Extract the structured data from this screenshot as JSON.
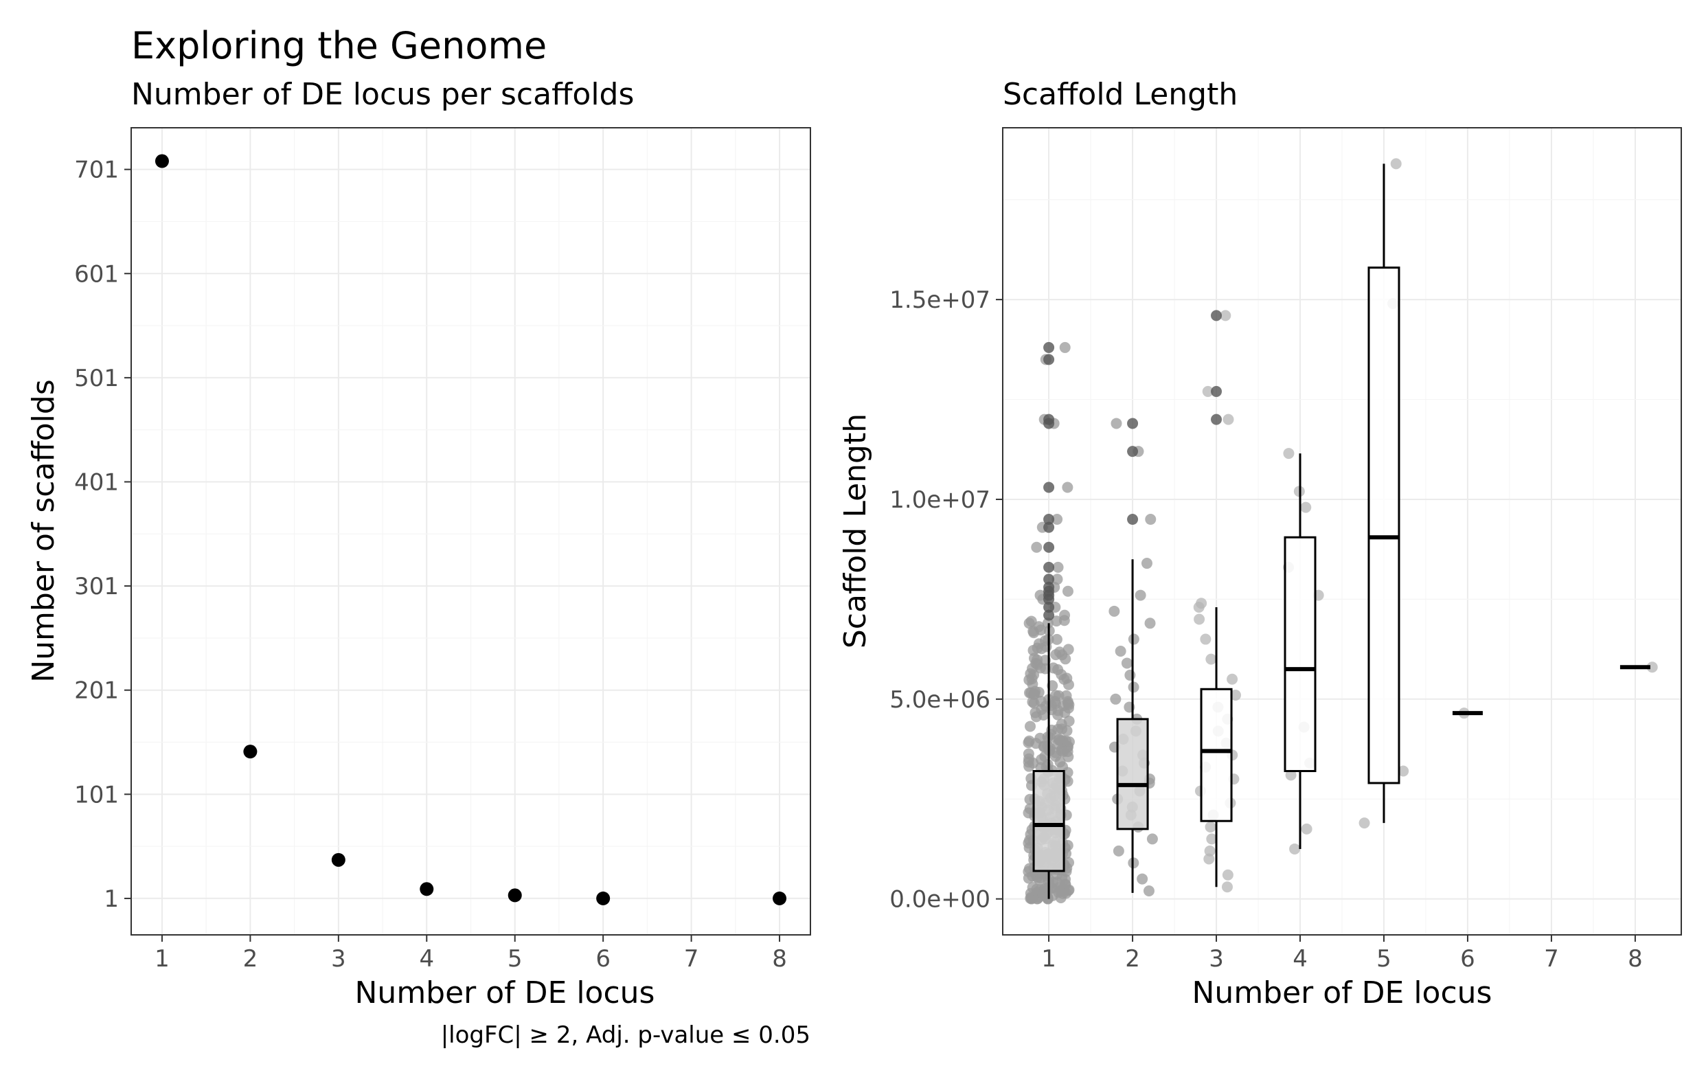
{
  "figure": {
    "title": "Exploring the Genome",
    "caption": "|logFC| ≥ 2,  Adj. p-value ≤ 0.05"
  },
  "chart_data": [
    {
      "type": "scatter",
      "title": "Number of DE locus per scaffolds",
      "xlabel": "Number of DE locus",
      "ylabel": "Number of scaffolds",
      "x_ticks": [
        1,
        2,
        3,
        4,
        5,
        6,
        7,
        8
      ],
      "y_ticks": [
        1,
        101,
        201,
        301,
        401,
        501,
        601,
        701
      ],
      "xlim": [
        0.65,
        8.35
      ],
      "ylim": [
        -34,
        741
      ],
      "grid": true,
      "points": [
        {
          "x": 1,
          "y": 709
        },
        {
          "x": 2,
          "y": 142
        },
        {
          "x": 3,
          "y": 38
        },
        {
          "x": 4,
          "y": 10
        },
        {
          "x": 5,
          "y": 4
        },
        {
          "x": 6,
          "y": 1
        },
        {
          "x": 8,
          "y": 1
        }
      ]
    },
    {
      "type": "box",
      "title": "Scaffold Length",
      "xlabel": "Number of DE locus",
      "ylabel": "Scaffold Length",
      "x_ticks": [
        1,
        2,
        3,
        4,
        5,
        6,
        7,
        8
      ],
      "y_ticks": [
        {
          "value": 0,
          "label": "0.0e+00"
        },
        {
          "value": 5000000,
          "label": "5.0e+06"
        },
        {
          "value": 10000000,
          "label": "1.0e+07"
        },
        {
          "value": 15000000,
          "label": "1.5e+07"
        }
      ],
      "xlim": [
        0.45,
        8.55
      ],
      "ylim": [
        -900000,
        19300000
      ],
      "grid": true,
      "boxes": [
        {
          "x": 1,
          "q1": 700000,
          "median": 1850000,
          "q3": 3200000,
          "whisker_low": 0,
          "whisker_high": 6900000,
          "outliers": [
            7100000,
            7300000,
            7500000,
            7600000,
            7700000,
            7800000,
            8000000,
            8300000,
            8800000,
            9300000,
            9500000,
            10300000,
            11900000,
            12000000,
            13500000,
            13800000
          ]
        },
        {
          "x": 2,
          "q1": 1750000,
          "median": 2850000,
          "q3": 4500000,
          "whisker_low": 150000,
          "whisker_high": 8500000,
          "outliers": [
            9500000,
            11200000,
            11900000
          ]
        },
        {
          "x": 3,
          "q1": 1950000,
          "median": 3700000,
          "q3": 5250000,
          "whisker_low": 300000,
          "whisker_high": 7300000,
          "outliers": [
            12000000,
            12700000,
            14600000
          ]
        },
        {
          "x": 4,
          "q1": 3200000,
          "median": 5750000,
          "q3": 9050000,
          "whisker_low": 1250000,
          "whisker_high": 11150000,
          "outliers": []
        },
        {
          "x": 5,
          "q1": 2900000,
          "median": 9050000,
          "q3": 15800000,
          "whisker_low": 1900000,
          "whisker_high": 18400000,
          "outliers": []
        },
        {
          "x": 6,
          "q1": 4650000,
          "median": 4650000,
          "q3": 4650000,
          "whisker_low": 4650000,
          "whisker_high": 4650000,
          "outliers": []
        },
        {
          "x": 8,
          "q1": 5800000,
          "median": 5800000,
          "q3": 5800000,
          "whisker_low": 5800000,
          "whisker_high": 5800000,
          "outliers": []
        }
      ],
      "jitter": [
        {
          "x": 1,
          "count": 300,
          "values": []
        },
        {
          "x": 2,
          "count": 120,
          "values": [
            200000,
            500000,
            900000,
            1200000,
            1500000,
            1800000,
            2100000,
            2300000,
            2500000,
            2700000,
            2900000,
            3000000,
            3200000,
            3400000,
            3600000,
            3800000,
            4000000,
            4200000,
            4500000,
            4800000,
            5000000,
            5300000,
            5600000,
            5900000,
            6200000,
            6500000,
            6900000,
            7200000,
            7600000,
            8400000,
            11900000,
            11200000,
            9500000
          ]
        },
        {
          "x": 3,
          "count": 38,
          "values": [
            300000,
            600000,
            1000000,
            1200000,
            1500000,
            1800000,
            2100000,
            2400000,
            2700000,
            3000000,
            3300000,
            3600000,
            3900000,
            4200000,
            4500000,
            4800000,
            5100000,
            5500000,
            6000000,
            6500000,
            7000000,
            7300000,
            7400000,
            12000000,
            12700000,
            14600000
          ]
        },
        {
          "x": 4,
          "count": 10,
          "values": [
            1250000,
            1750000,
            3100000,
            3400000,
            4300000,
            7600000,
            8300000,
            9800000,
            10200000,
            11150000
          ]
        },
        {
          "x": 5,
          "count": 4,
          "values": [
            1900000,
            3200000,
            14900000,
            18400000
          ]
        },
        {
          "x": 6,
          "count": 1,
          "values": [
            4650000
          ]
        },
        {
          "x": 8,
          "count": 1,
          "values": [
            5800000
          ]
        }
      ]
    }
  ]
}
